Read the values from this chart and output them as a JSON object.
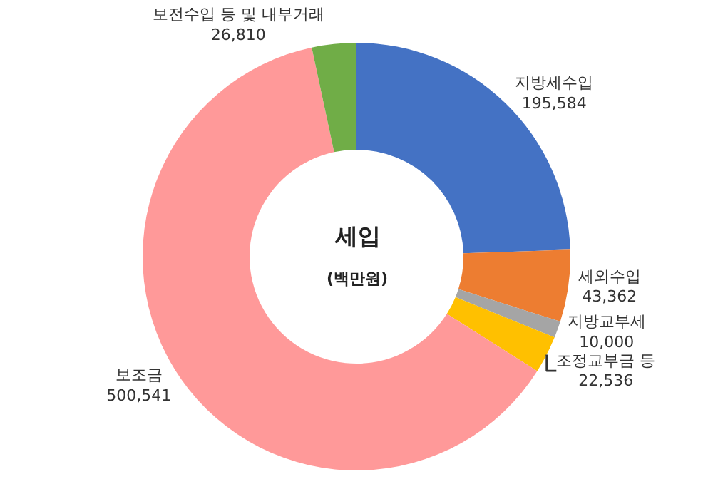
{
  "chart_data": {
    "type": "donut",
    "title": "세입",
    "subtitle": "(백만원)",
    "categories": [
      "지방세수입",
      "세외수입",
      "지방교부세",
      "조정교부금 등",
      "보조금",
      "보전수입 등 및 내부거래"
    ],
    "values": [
      195584,
      43362,
      10000,
      22536,
      500541,
      26810
    ],
    "value_labels": [
      "195,584",
      "43,362",
      "10,000",
      "22,536",
      "500,541",
      "26,810"
    ],
    "colors": [
      "#4472c4",
      "#ed7d31",
      "#a5a5a5",
      "#ffc000",
      "#ff9999",
      "#70ad47"
    ],
    "legend": false
  }
}
